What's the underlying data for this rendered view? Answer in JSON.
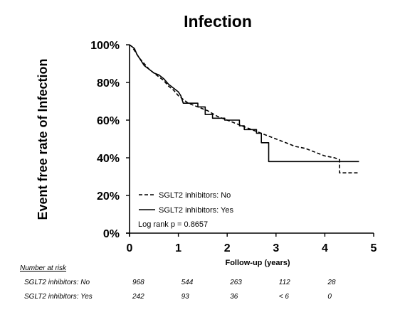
{
  "chart_data": {
    "type": "line",
    "title": "Infection",
    "ylabel": "Event free rate of Infection",
    "xlabel": "Follow-up (years)",
    "xlim": [
      0,
      5
    ],
    "ylim": [
      0,
      100
    ],
    "x_ticks": [
      "0",
      "1",
      "2",
      "3",
      "4",
      "5"
    ],
    "y_ticks": [
      "0%",
      "20%",
      "40%",
      "60%",
      "80%",
      "100%"
    ],
    "grid": false,
    "legend_position": "bottom-left",
    "annotation": "Log rank p = 0.8657",
    "series": [
      {
        "name": "SGLT2 inhibitors: No",
        "style": "dashed",
        "color": "#000000",
        "points": [
          [
            0,
            100
          ],
          [
            0.05,
            99
          ],
          [
            0.1,
            97
          ],
          [
            0.15,
            95
          ],
          [
            0.2,
            93
          ],
          [
            0.3,
            90
          ],
          [
            0.4,
            87
          ],
          [
            0.5,
            85
          ],
          [
            0.6,
            83
          ],
          [
            0.7,
            81
          ],
          [
            0.8,
            78
          ],
          [
            0.9,
            76
          ],
          [
            1.0,
            73
          ],
          [
            1.1,
            71
          ],
          [
            1.2,
            69
          ],
          [
            1.4,
            67
          ],
          [
            1.6,
            65
          ],
          [
            1.8,
            62
          ],
          [
            2.0,
            60
          ],
          [
            2.2,
            58
          ],
          [
            2.4,
            56
          ],
          [
            2.6,
            54
          ],
          [
            2.8,
            52
          ],
          [
            3.0,
            50
          ],
          [
            3.2,
            48
          ],
          [
            3.4,
            46
          ],
          [
            3.6,
            45
          ],
          [
            3.8,
            43
          ],
          [
            4.0,
            41
          ],
          [
            4.2,
            40
          ],
          [
            4.3,
            39
          ],
          [
            4.3,
            32
          ],
          [
            4.7,
            32
          ]
        ]
      },
      {
        "name": "SGLT2 inhibitors: Yes",
        "style": "solid",
        "color": "#000000",
        "points": [
          [
            0,
            100
          ],
          [
            0.05,
            99
          ],
          [
            0.1,
            98
          ],
          [
            0.15,
            95
          ],
          [
            0.2,
            93
          ],
          [
            0.3,
            89
          ],
          [
            0.4,
            87
          ],
          [
            0.5,
            85
          ],
          [
            0.6,
            84
          ],
          [
            0.7,
            82
          ],
          [
            0.8,
            79
          ],
          [
            0.9,
            77
          ],
          [
            1.0,
            75
          ],
          [
            1.05,
            73
          ],
          [
            1.1,
            69
          ],
          [
            1.4,
            69
          ],
          [
            1.4,
            67
          ],
          [
            1.55,
            67
          ],
          [
            1.55,
            63
          ],
          [
            1.7,
            63
          ],
          [
            1.7,
            61
          ],
          [
            1.95,
            61
          ],
          [
            1.95,
            60
          ],
          [
            2.25,
            60
          ],
          [
            2.25,
            57
          ],
          [
            2.35,
            57
          ],
          [
            2.35,
            55
          ],
          [
            2.6,
            55
          ],
          [
            2.6,
            53
          ],
          [
            2.7,
            53
          ],
          [
            2.7,
            48
          ],
          [
            2.85,
            48
          ],
          [
            2.85,
            38
          ],
          [
            4.3,
            38
          ],
          [
            4.3,
            38
          ],
          [
            4.7,
            38
          ]
        ]
      }
    ]
  },
  "risk_table": {
    "header": "Number at risk",
    "rows": [
      {
        "label": "SGLT2 inhibitors: No",
        "values": [
          "968",
          "544",
          "263",
          "112",
          "28"
        ]
      },
      {
        "label": "SGLT2 inhibitors: Yes",
        "values": [
          "242",
          "93",
          "36",
          "< 6",
          "0"
        ]
      }
    ]
  }
}
